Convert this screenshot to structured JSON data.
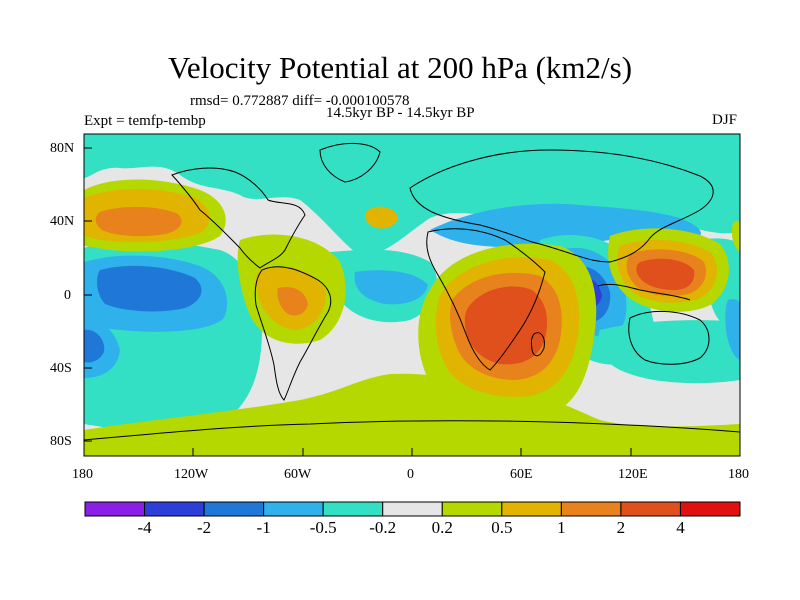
{
  "title": "Velocity Potential at 200 hPa (km2/s)",
  "stats": "rmsd= 0.772887 diff= -0.000100578",
  "left_label": "Expt = temfp-tembp",
  "center_label": "14.5kyr BP - 14.5kyr BP",
  "right_label": "DJF",
  "lat_ticks": [
    "80N",
    "40N",
    "0",
    "40S",
    "80S"
  ],
  "lon_ticks": [
    "180",
    "120W",
    "60W",
    "0",
    "60E",
    "120E",
    "180"
  ],
  "colorbar": {
    "labels": [
      "-4",
      "-2",
      "-1",
      "-0.5",
      "-0.2",
      "0.2",
      "0.5",
      "1",
      "2",
      "4"
    ],
    "colors": [
      "#8a1fe6",
      "#2d3fd8",
      "#1f78d8",
      "#2fb1ec",
      "#33e0c4",
      "#e6e6e6",
      "#b4d800",
      "#e0b400",
      "#e8821c",
      "#e0501c",
      "#e01010"
    ]
  },
  "palette": {
    "neutral": "#e6e6e6",
    "neg_weak": "#33e0c4",
    "neg_mid": "#2fb1ec",
    "neg_strong": "#1f78d8",
    "neg_vstrong": "#2d3fd8",
    "neg_max": "#8a1fe6",
    "pos_weak": "#b4d800",
    "pos_mid": "#e0b400",
    "pos_strong": "#e8821c",
    "pos_vstrong": "#e0501c",
    "pos_max": "#e01010"
  }
}
